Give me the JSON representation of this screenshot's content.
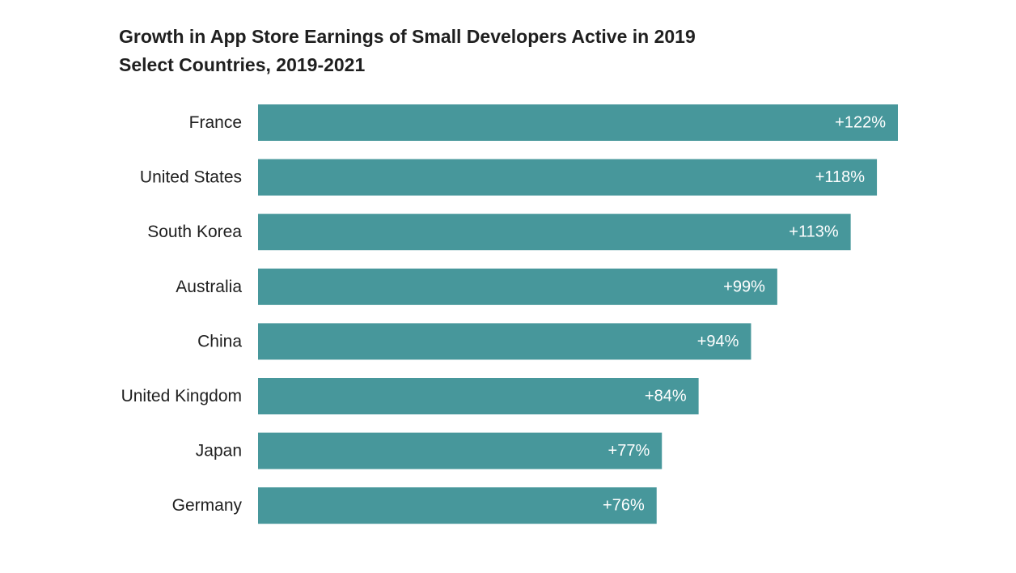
{
  "chart_data": {
    "type": "bar",
    "orientation": "horizontal",
    "title": "Growth in App Store Earnings of Small Developers Active in 2019",
    "subtitle": "Select Countries, 2019-2021",
    "categories": [
      "France",
      "United States",
      "South Korea",
      "Australia",
      "China",
      "United Kingdom",
      "Japan",
      "Germany"
    ],
    "values": [
      122,
      118,
      113,
      99,
      94,
      84,
      77,
      76
    ],
    "value_labels": [
      "+122%",
      "+118%",
      "+113%",
      "+99%",
      "+94%",
      "+84%",
      "+77%",
      "+76%"
    ],
    "xlim": [
      0,
      122
    ],
    "grid": false,
    "legend": "none",
    "colors": {
      "bar": "#47979B",
      "category_text": "#1f1f1f",
      "value_text": "#ffffff",
      "title_text": "#1f1f1f"
    }
  }
}
